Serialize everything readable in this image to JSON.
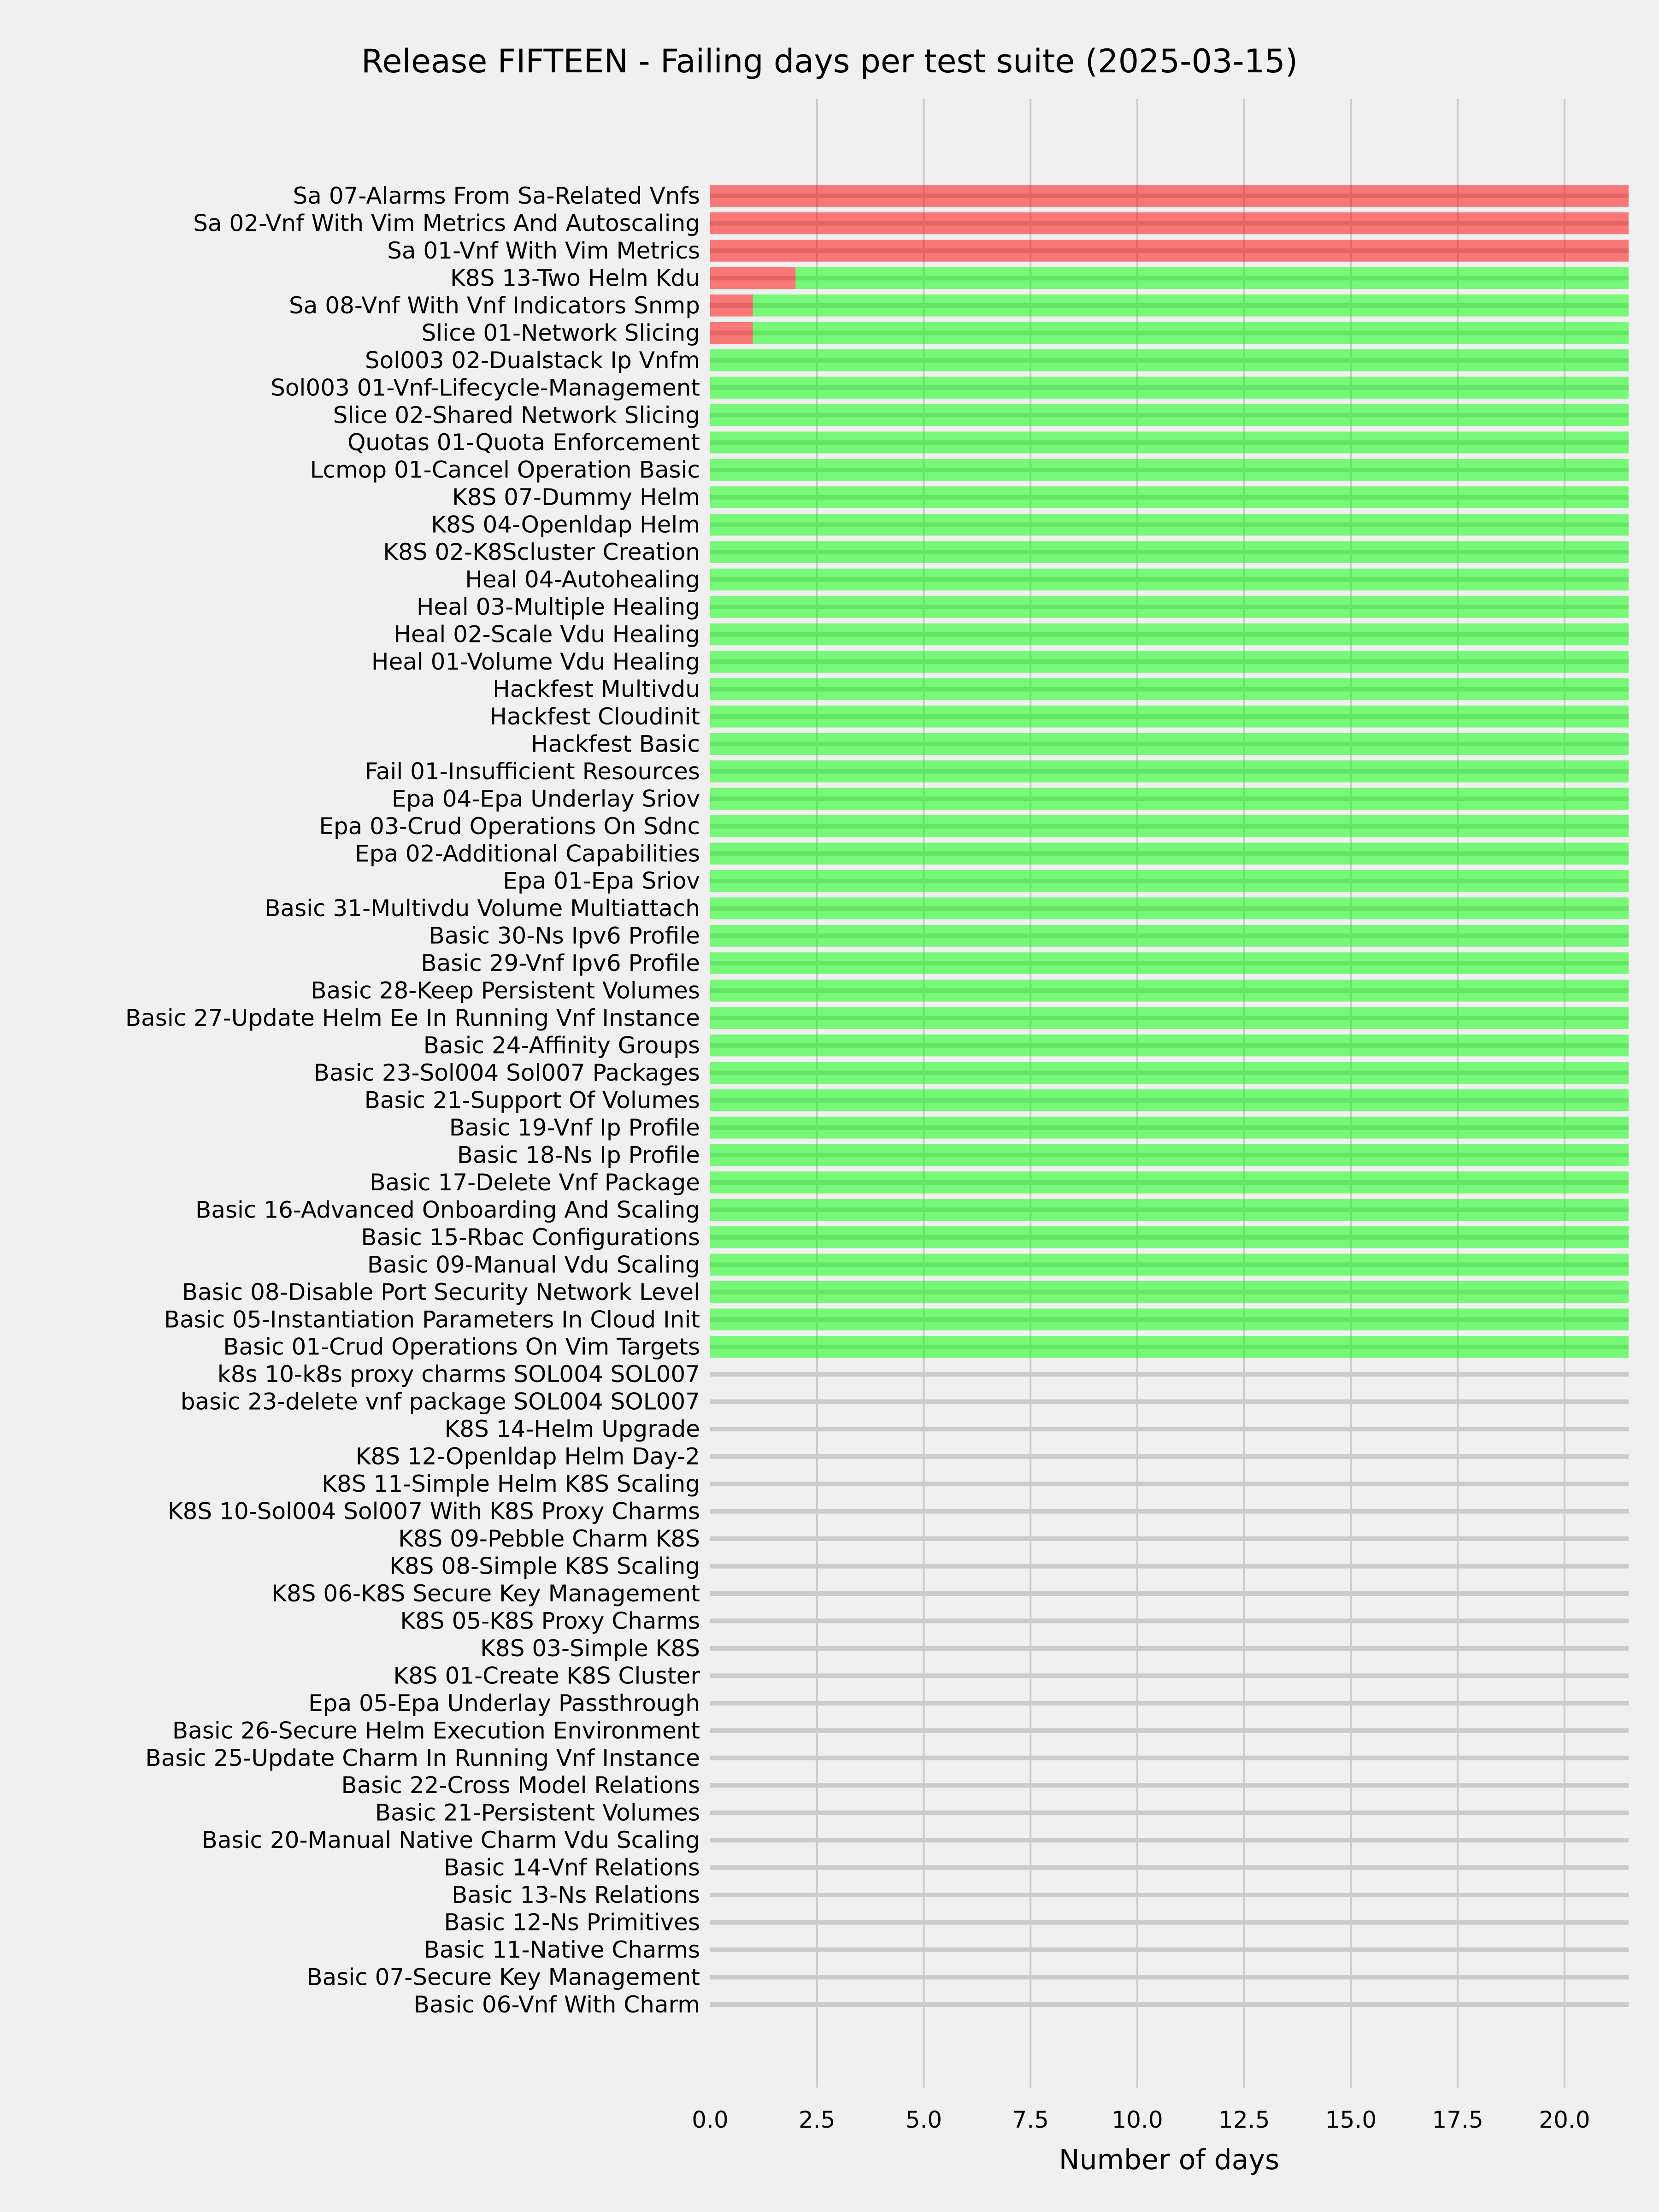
{
  "chart_data": {
    "type": "bar",
    "orientation": "horizontal",
    "stacked": true,
    "title": "Release FIFTEEN - Failing days per test suite (2025-03-15)",
    "xlabel": "Number of days",
    "ylabel": "",
    "xlim": [
      0,
      21.5
    ],
    "xticks": [
      "0.0",
      "2.5",
      "5.0",
      "7.5",
      "10.0",
      "12.5",
      "15.0",
      "17.5",
      "20.0"
    ],
    "grid": true,
    "legend": "none",
    "categories": [
      "Sa 07-Alarms From Sa-Related Vnfs",
      "Sa 02-Vnf With Vim Metrics And Autoscaling",
      "Sa 01-Vnf With Vim Metrics",
      "K8S 13-Two Helm Kdu",
      "Sa 08-Vnf With Vnf Indicators Snmp",
      "Slice 01-Network Slicing",
      "Sol003 02-Dualstack Ip Vnfm",
      "Sol003 01-Vnf-Lifecycle-Management",
      "Slice 02-Shared Network Slicing",
      "Quotas 01-Quota Enforcement",
      "Lcmop 01-Cancel Operation Basic",
      "K8S 07-Dummy Helm",
      "K8S 04-Openldap Helm",
      "K8S 02-K8Scluster Creation",
      "Heal 04-Autohealing",
      "Heal 03-Multiple Healing",
      "Heal 02-Scale Vdu Healing",
      "Heal 01-Volume Vdu Healing",
      "Hackfest Multivdu",
      "Hackfest Cloudinit",
      "Hackfest Basic",
      "Fail 01-Insufficient Resources",
      "Epa 04-Epa Underlay Sriov",
      "Epa 03-Crud Operations On Sdnc",
      "Epa 02-Additional Capabilities",
      "Epa 01-Epa Sriov",
      "Basic 31-Multivdu Volume Multiattach",
      "Basic 30-Ns Ipv6 Profile",
      "Basic 29-Vnf Ipv6 Profile",
      "Basic 28-Keep Persistent Volumes",
      "Basic 27-Update Helm Ee In Running Vnf Instance",
      "Basic 24-Affinity Groups",
      "Basic 23-Sol004 Sol007 Packages",
      "Basic 21-Support Of Volumes",
      "Basic 19-Vnf Ip Profile",
      "Basic 18-Ns Ip Profile",
      "Basic 17-Delete Vnf Package",
      "Basic 16-Advanced Onboarding And Scaling",
      "Basic 15-Rbac Configurations",
      "Basic 09-Manual Vdu Scaling",
      "Basic 08-Disable Port Security Network Level",
      "Basic 05-Instantiation Parameters In Cloud Init",
      "Basic 01-Crud Operations On Vim Targets",
      "k8s 10-k8s proxy charms SOL004 SOL007",
      "basic 23-delete vnf package SOL004 SOL007",
      "K8S 14-Helm Upgrade",
      "K8S 12-Openldap Helm Day-2",
      "K8S 11-Simple Helm K8S Scaling",
      "K8S 10-Sol004 Sol007 With K8S Proxy Charms",
      "K8S 09-Pebble Charm K8S",
      "K8S 08-Simple K8S Scaling",
      "K8S 06-K8S Secure Key Management",
      "K8S 05-K8S Proxy Charms",
      "K8S 03-Simple K8S",
      "K8S 01-Create K8S Cluster",
      "Epa 05-Epa Underlay Passthrough",
      "Basic 26-Secure Helm Execution Environment",
      "Basic 25-Update Charm In Running Vnf Instance",
      "Basic 22-Cross Model Relations",
      "Basic 21-Persistent Volumes",
      "Basic 20-Manual Native Charm Vdu Scaling",
      "Basic 14-Vnf Relations",
      "Basic 13-Ns Relations",
      "Basic 12-Ns Primitives",
      "Basic 11-Native Charms",
      "Basic 07-Secure Key Management",
      "Basic 06-Vnf With Charm"
    ],
    "series": [
      {
        "color": "#ff0000",
        "values": [
          21.5,
          21.5,
          21.5,
          2,
          1,
          1,
          0,
          0,
          0,
          0,
          0,
          0,
          0,
          0,
          0,
          0,
          0,
          0,
          0,
          0,
          0,
          0,
          0,
          0,
          0,
          0,
          0,
          0,
          0,
          0,
          0,
          0,
          0,
          0,
          0,
          0,
          0,
          0,
          0,
          0,
          0,
          0,
          0,
          0,
          0,
          0,
          0,
          0,
          0,
          0,
          0,
          0,
          0,
          0,
          0,
          0,
          0,
          0,
          0,
          0,
          0,
          0,
          0,
          0,
          0,
          0,
          0
        ]
      },
      {
        "color": "#00ff00",
        "values": [
          0,
          0,
          0,
          19.5,
          20.5,
          20.5,
          21.5,
          21.5,
          21.5,
          21.5,
          21.5,
          21.5,
          21.5,
          21.5,
          21.5,
          21.5,
          21.5,
          21.5,
          21.5,
          21.5,
          21.5,
          21.5,
          21.5,
          21.5,
          21.5,
          21.5,
          21.5,
          21.5,
          21.5,
          21.5,
          21.5,
          21.5,
          21.5,
          21.5,
          21.5,
          21.5,
          21.5,
          21.5,
          21.5,
          21.5,
          21.5,
          21.5,
          21.5,
          0,
          0,
          0,
          0,
          0,
          0,
          0,
          0,
          0,
          0,
          0,
          0,
          0,
          0,
          0,
          0,
          0,
          0,
          0,
          0,
          0,
          0,
          0,
          0
        ]
      }
    ]
  }
}
